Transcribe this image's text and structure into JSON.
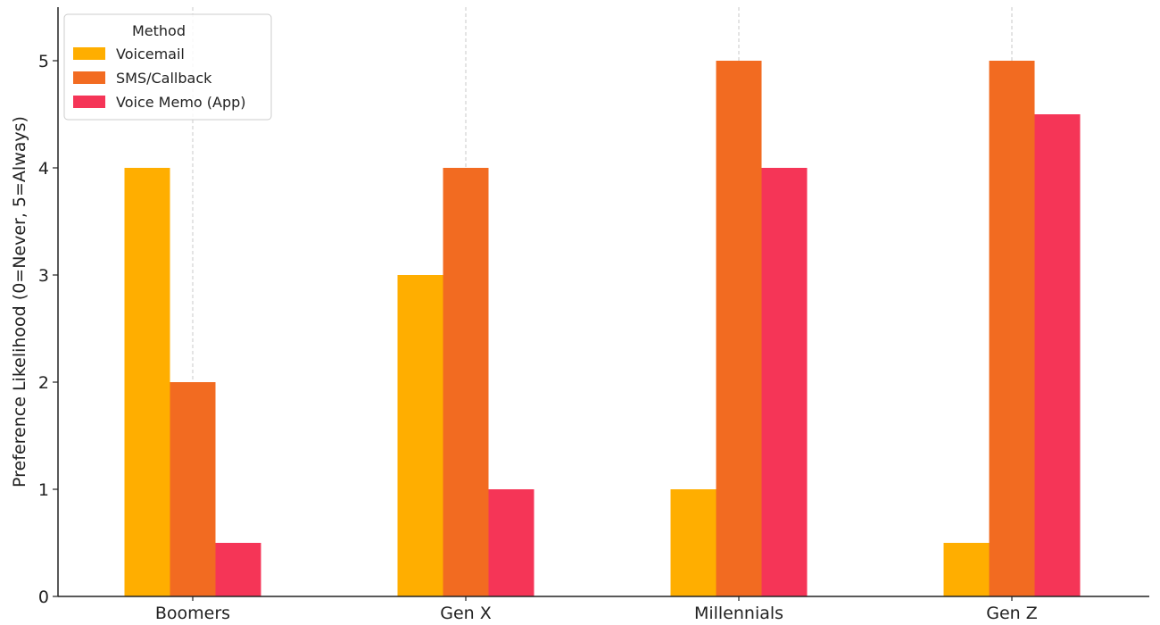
{
  "chart_data": {
    "type": "bar",
    "title": "",
    "xlabel": "",
    "ylabel": "Preference Likelihood (0=Never, 5=Always)",
    "categories": [
      "Boomers",
      "Gen X",
      "Millennials",
      "Gen Z"
    ],
    "series": [
      {
        "name": "Voicemail",
        "color": "#FFAE00",
        "values": [
          4,
          3,
          1,
          0.5
        ]
      },
      {
        "name": "SMS/Callback",
        "color": "#F26B21",
        "values": [
          2,
          4,
          5,
          5
        ]
      },
      {
        "name": "Voice Memo (App)",
        "color": "#F53557",
        "values": [
          0.5,
          1,
          4,
          4.5
        ]
      }
    ],
    "ylim": [
      0,
      5.5
    ],
    "yticks": [
      0,
      1,
      2,
      3,
      4,
      5
    ],
    "grid": "x-dashed",
    "legend": {
      "title": "Method",
      "placement": "top-left"
    }
  }
}
